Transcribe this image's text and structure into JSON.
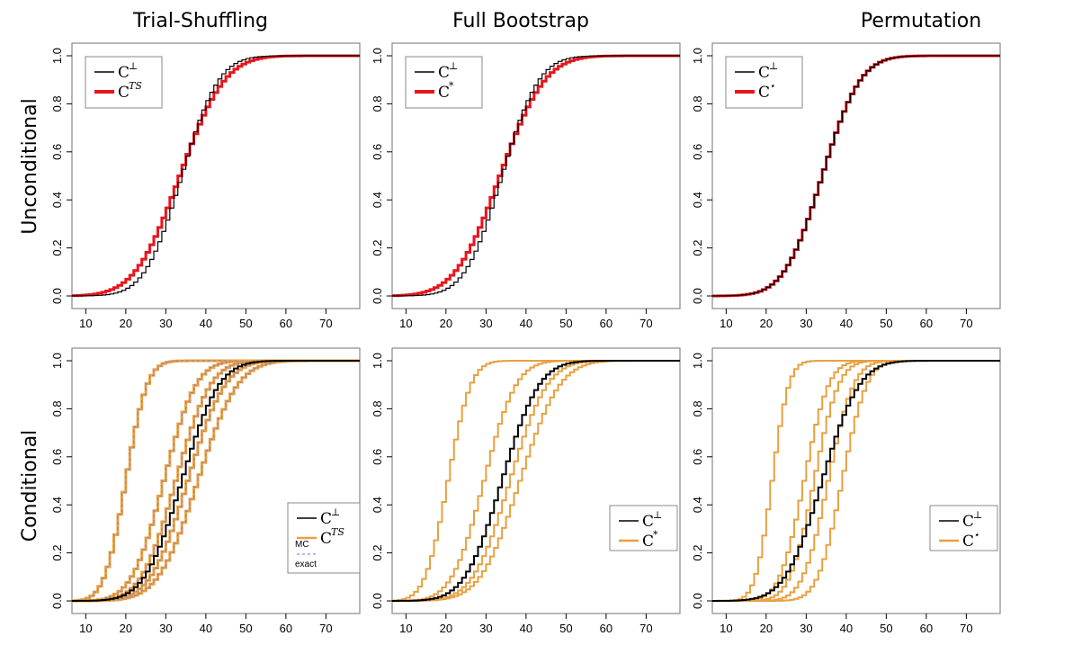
{
  "column_titles": [
    "Trial-Shuffling",
    "Full Bootstrap",
    "Permutation"
  ],
  "row_titles": [
    "Unconditional",
    "Conditional"
  ],
  "colors": {
    "black": "#000000",
    "red": "#e8141c",
    "orange": "#e8a040",
    "blue": "#6a6aff"
  },
  "chart_data": [
    {
      "type": "line",
      "title": "Trial-Shuffling",
      "row": "Unconditional",
      "xlim": [
        7,
        78
      ],
      "ylim": [
        0,
        1
      ],
      "xticks": [
        "10",
        "20",
        "30",
        "40",
        "50",
        "60",
        "70"
      ],
      "yticks": [
        "0.0",
        "0.2",
        "0.4",
        "0.6",
        "0.8",
        "1.0"
      ],
      "legend": {
        "position": "top-left",
        "entries": [
          {
            "label": "C",
            "sup": "⊥"
          },
          {
            "label": "C",
            "sup": "TS"
          }
        ]
      },
      "series": [
        {
          "color": "black",
          "width": 1.2,
          "mu": 33.5,
          "sigma": 7.3
        },
        {
          "color": "red",
          "width": 3,
          "mu": 33.0,
          "sigma": 8.8
        }
      ]
    },
    {
      "type": "line",
      "title": "Full Bootstrap",
      "row": "Unconditional",
      "xlim": [
        7,
        78
      ],
      "ylim": [
        0,
        1
      ],
      "xticks": [
        "10",
        "20",
        "30",
        "40",
        "50",
        "60",
        "70"
      ],
      "yticks": [
        "0.0",
        "0.2",
        "0.4",
        "0.6",
        "0.8",
        "1.0"
      ],
      "legend": {
        "position": "top-left",
        "entries": [
          {
            "label": "C",
            "sup": "⊥"
          },
          {
            "label": "C",
            "sup": "*"
          }
        ]
      },
      "series": [
        {
          "color": "black",
          "width": 1.2,
          "mu": 33.5,
          "sigma": 7.3
        },
        {
          "color": "red",
          "width": 3,
          "mu": 33.0,
          "sigma": 8.8
        }
      ]
    },
    {
      "type": "line",
      "title": "Permutation",
      "row": "Unconditional",
      "xlim": [
        7,
        78
      ],
      "ylim": [
        0,
        1
      ],
      "xticks": [
        "10",
        "20",
        "30",
        "40",
        "50",
        "60",
        "70"
      ],
      "yticks": [
        "0.0",
        "0.2",
        "0.4",
        "0.6",
        "0.8",
        "1.0"
      ],
      "legend": {
        "position": "top-left",
        "entries": [
          {
            "label": "C",
            "sup": "⊥"
          },
          {
            "label": "C",
            "sup": "⋆"
          }
        ]
      },
      "series": [
        {
          "color": "black",
          "width": 1.2,
          "mu": 33.5,
          "sigma": 7.5
        },
        {
          "color": "red",
          "width": 3,
          "mu": 33.5,
          "sigma": 7.5
        }
      ]
    },
    {
      "type": "line",
      "title": "Trial-Shuffling",
      "row": "Conditional",
      "xlim": [
        7,
        78
      ],
      "ylim": [
        0,
        1
      ],
      "xticks": [
        "10",
        "20",
        "30",
        "40",
        "50",
        "60",
        "70"
      ],
      "yticks": [
        "0.0",
        "0.2",
        "0.4",
        "0.6",
        "0.8",
        "1.0"
      ],
      "legend": {
        "position": "bottom-right",
        "entries": [
          {
            "label": "C",
            "sup": "⊥"
          },
          {
            "label": "C",
            "sup": "TS",
            "pre": "MC"
          },
          {
            "label": "",
            "pre": "exact"
          }
        ]
      },
      "series": [
        {
          "color": "black",
          "width": 2,
          "mu": 33.5,
          "sigma": 7.3
        },
        {
          "color": "orange",
          "width": 3,
          "mu": 19.5,
          "sigma": 4.2,
          "dash": "blue"
        },
        {
          "color": "orange",
          "width": 3,
          "mu": 29,
          "sigma": 6.3,
          "dash": "blue"
        },
        {
          "color": "orange",
          "width": 3,
          "mu": 32,
          "sigma": 6.8,
          "dash": "blue"
        },
        {
          "color": "orange",
          "width": 3,
          "mu": 35,
          "sigma": 7.3,
          "dash": "blue"
        },
        {
          "color": "orange",
          "width": 3,
          "mu": 37.5,
          "sigma": 7.8,
          "dash": "blue"
        }
      ]
    },
    {
      "type": "line",
      "title": "Full Bootstrap",
      "row": "Conditional",
      "xlim": [
        7,
        78
      ],
      "ylim": [
        0,
        1
      ],
      "xticks": [
        "10",
        "20",
        "30",
        "40",
        "50",
        "60",
        "70"
      ],
      "yticks": [
        "0.0",
        "0.2",
        "0.4",
        "0.6",
        "0.8",
        "1.0"
      ],
      "legend": {
        "position": "bottom-right",
        "entries": [
          {
            "label": "C",
            "sup": "⊥"
          },
          {
            "label": "C",
            "sup": "*"
          }
        ]
      },
      "series": [
        {
          "color": "black",
          "width": 2,
          "mu": 33.5,
          "sigma": 7.3
        },
        {
          "color": "orange",
          "width": 2,
          "mu": 20,
          "sigma": 4.5
        },
        {
          "color": "orange",
          "width": 2,
          "mu": 29,
          "sigma": 6.3
        },
        {
          "color": "orange",
          "width": 2,
          "mu": 35.5,
          "sigma": 7.3
        },
        {
          "color": "orange",
          "width": 2,
          "mu": 38,
          "sigma": 7.8
        }
      ]
    },
    {
      "type": "line",
      "title": "Permutation",
      "row": "Conditional",
      "xlim": [
        7,
        78
      ],
      "ylim": [
        0,
        1
      ],
      "xticks": [
        "10",
        "20",
        "30",
        "40",
        "50",
        "60",
        "70"
      ],
      "yticks": [
        "0.0",
        "0.2",
        "0.4",
        "0.6",
        "0.8",
        "1.0"
      ],
      "legend": {
        "position": "bottom-right",
        "entries": [
          {
            "label": "C",
            "sup": "⊥"
          },
          {
            "label": "C",
            "sup": "⋆"
          }
        ]
      },
      "series": [
        {
          "color": "black",
          "width": 2,
          "mu": 33.5,
          "sigma": 7.3
        },
        {
          "color": "orange",
          "width": 2,
          "mu": 21,
          "sigma": 3.3
        },
        {
          "color": "orange",
          "width": 2,
          "mu": 29,
          "sigma": 4.8
        },
        {
          "color": "orange",
          "width": 2,
          "mu": 31.5,
          "sigma": 4.8
        },
        {
          "color": "orange",
          "width": 2,
          "mu": 35,
          "sigma": 5.0
        },
        {
          "color": "orange",
          "width": 2,
          "mu": 38.5,
          "sigma": 4.8
        }
      ]
    }
  ]
}
